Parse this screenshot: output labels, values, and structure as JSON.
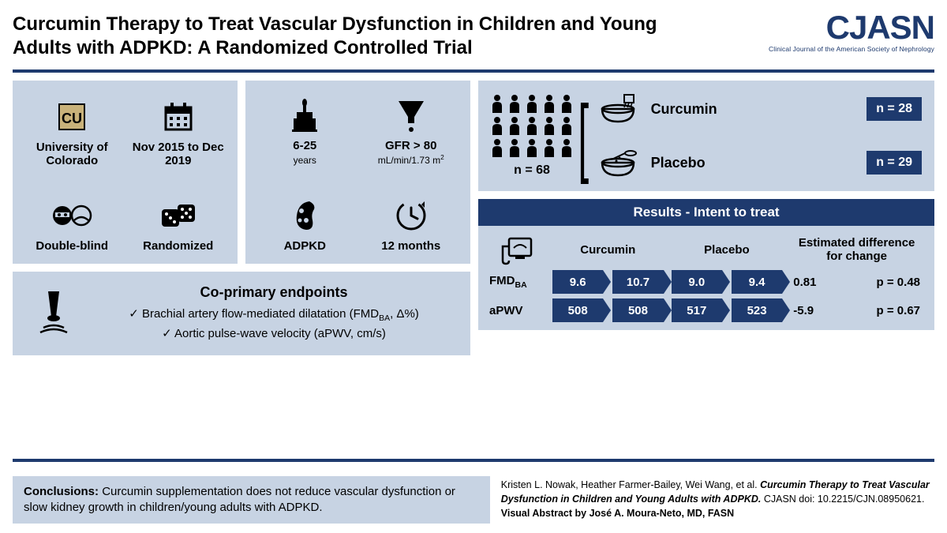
{
  "colors": {
    "accent": "#1e3a6e",
    "panel": "#c7d3e3",
    "text": "#000000",
    "white": "#ffffff"
  },
  "header": {
    "title": "Curcumin Therapy to Treat Vascular Dysfunction in Children and Young Adults with ADPKD: A Randomized Controlled Trial",
    "logo_main": "CJASN",
    "logo_sub": "Clinical Journal of the American Society of Nephrology"
  },
  "study": {
    "site": "University of Colorado",
    "period": "Nov 2015 to Dec 2019",
    "blinding": "Double-blind",
    "design": "Randomized"
  },
  "inclusion": {
    "age_main": "6-25",
    "age_sub": "years",
    "gfr_main": "GFR > 80",
    "gfr_sub": "mL/min/1.73 m²",
    "disease": "ADPKD",
    "duration": "12 months"
  },
  "endpoints": {
    "title": "Co-primary endpoints",
    "items": [
      "Brachial artery flow-mediated dilatation (FMDᴮᴬ, Δ%)",
      "Aortic pulse-wave velocity (aPWV, cm/s)"
    ]
  },
  "arms": {
    "n_total": "n = 68",
    "curcumin": {
      "label": "Curcumin",
      "n": "n = 28"
    },
    "placebo": {
      "label": "Placebo",
      "n": "n = 29"
    }
  },
  "results": {
    "header": "Results - Intent to treat",
    "col_curcumin": "Curcumin",
    "col_placebo": "Placebo",
    "col_diff": "Estimated difference for change",
    "rows": [
      {
        "label": "FMDᴮᴬ",
        "curcumin": [
          "9.6",
          "10.7"
        ],
        "placebo": [
          "9.0",
          "9.4"
        ],
        "diff": "0.81",
        "p": "p = 0.48"
      },
      {
        "label": "aPWV",
        "curcumin": [
          "508",
          "508"
        ],
        "placebo": [
          "517",
          "523"
        ],
        "diff": "-5.9",
        "p": "p = 0.67"
      }
    ]
  },
  "conclusions": {
    "title": "Conclusions:",
    "text": "Curcumin supplementation does not reduce vascular dysfunction or slow kidney growth in children/young adults with ADPKD."
  },
  "citation": {
    "authors": "Kristen L. Nowak, Heather Farmer-Bailey, Wei Wang, et al.",
    "title": "Curcumin Therapy to Treat Vascular Dysfunction in Children and Young Adults with ADPKD.",
    "journal": "CJASN doi: 10.2215/CJN.08950621.",
    "abstract_by": "Visual Abstract by José A. Moura-Neto, MD, FASN"
  }
}
